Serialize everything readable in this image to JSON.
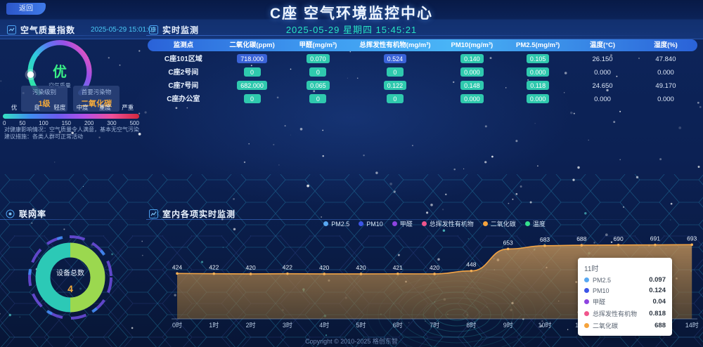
{
  "back_button": "返回",
  "header": {
    "title": "C座 空气环境监控中心",
    "datetime": "2025-05-29 星期四 15:45:21"
  },
  "aqi_panel": {
    "title": "空气质量指数",
    "timestamp": "2025-05-29 15:01:01",
    "gauge_grade": "优",
    "gauge_label": "空气质量",
    "stats": [
      {
        "label": "污染级别",
        "value": "1级"
      },
      {
        "label": "首要污染物",
        "value": "二氧化碳"
      }
    ],
    "scale_levels": [
      "优",
      "良",
      "轻度",
      "中度",
      "重度",
      "严重"
    ],
    "scale_ticks": [
      "0",
      "50",
      "100",
      "150",
      "200",
      "300",
      "500"
    ],
    "scale_colors": [
      "#35e2c2",
      "#3f8ef0",
      "#6a5df0",
      "#b44fe8",
      "#ef4f9a",
      "#d1283c"
    ],
    "desc_line1": "对健康影响情况：空气质量令人满意，基本无空气污染",
    "desc_line2": "建议措施：各类人群可正常活动"
  },
  "realtime_panel": {
    "title": "实时监测",
    "columns": [
      "监测点",
      "二氧化碳(ppm)",
      "甲醛(mg/m³)",
      "总挥发性有机物(mg/m³)",
      "PM10(mg/m³)",
      "PM2.5(mg/m³)",
      "温度(°C)",
      "湿度(%)"
    ],
    "rows": [
      {
        "name": "C座101区域",
        "cells": [
          {
            "v": "718.000",
            "b": "blue"
          },
          {
            "v": "0.070",
            "b": "teal"
          },
          {
            "v": "0.524",
            "b": "blue"
          },
          {
            "v": "0.140",
            "b": "teal"
          },
          {
            "v": "0.105",
            "b": "teal"
          },
          {
            "v": "26.150",
            "b": "none"
          },
          {
            "v": "47.840",
            "b": "none"
          }
        ]
      },
      {
        "name": "C座2号间",
        "cells": [
          {
            "v": "0",
            "b": "teal"
          },
          {
            "v": "0",
            "b": "teal"
          },
          {
            "v": "0",
            "b": "teal"
          },
          {
            "v": "0.000",
            "b": "teal"
          },
          {
            "v": "0.000",
            "b": "teal"
          },
          {
            "v": "0.000",
            "b": "none"
          },
          {
            "v": "0.000",
            "b": "none"
          }
        ]
      },
      {
        "name": "C座7号间",
        "cells": [
          {
            "v": "682.000",
            "b": "teal"
          },
          {
            "v": "0.065",
            "b": "teal"
          },
          {
            "v": "0.122",
            "b": "teal"
          },
          {
            "v": "0.148",
            "b": "teal"
          },
          {
            "v": "0.118",
            "b": "teal"
          },
          {
            "v": "24.650",
            "b": "none"
          },
          {
            "v": "49.170",
            "b": "none"
          }
        ]
      },
      {
        "name": "C座办公室",
        "cells": [
          {
            "v": "0",
            "b": "teal"
          },
          {
            "v": "0",
            "b": "teal"
          },
          {
            "v": "0",
            "b": "teal"
          },
          {
            "v": "0.000",
            "b": "teal"
          },
          {
            "v": "0.000",
            "b": "teal"
          },
          {
            "v": "0.000",
            "b": "none"
          },
          {
            "v": "0.000",
            "b": "none"
          }
        ]
      }
    ]
  },
  "network_panel": {
    "title": "联网率",
    "center_label": "设备总数",
    "center_value": "4"
  },
  "chart_panel": {
    "title": "室内各项实时监测",
    "legend": [
      {
        "label": "PM2.5",
        "color": "#58a8f2"
      },
      {
        "label": "PM10",
        "color": "#3c55e8"
      },
      {
        "label": "甲醛",
        "color": "#8e44e0"
      },
      {
        "label": "总挥发性有机物",
        "color": "#f0558c"
      },
      {
        "label": "二氧化碳",
        "color": "#f5a33c"
      },
      {
        "label": "温度",
        "color": "#35e08c"
      }
    ]
  },
  "chart_data": {
    "type": "area",
    "title": "室内各项实时监测",
    "x": [
      "0时",
      "1时",
      "2时",
      "3时",
      "4时",
      "5时",
      "6时",
      "7时",
      "8时",
      "9时",
      "10时",
      "11时",
      "12时",
      "13时",
      "14时"
    ],
    "series": [
      {
        "name": "二氧化碳",
        "color": "#f5a33c",
        "values": [
          424,
          422,
          420,
          422,
          420,
          420,
          421,
          420,
          448,
          653,
          683,
          688,
          690,
          691,
          693
        ]
      }
    ],
    "ylim": [
      0,
      700
    ],
    "legend_position": "top",
    "grid": false
  },
  "tooltip": {
    "title": "11时",
    "rows": [
      {
        "label": "PM2.5",
        "value": "0.097",
        "color": "#58a8f2"
      },
      {
        "label": "PM10",
        "value": "0.124",
        "color": "#3c55e8"
      },
      {
        "label": "甲醛",
        "value": "0.04",
        "color": "#8e44e0"
      },
      {
        "label": "总挥发性有机物",
        "value": "0.818",
        "color": "#f0558c"
      },
      {
        "label": "二氧化碳",
        "value": "688",
        "color": "#f5a33c"
      }
    ]
  },
  "footer": "Copyright © 2010-2025 格创东智"
}
